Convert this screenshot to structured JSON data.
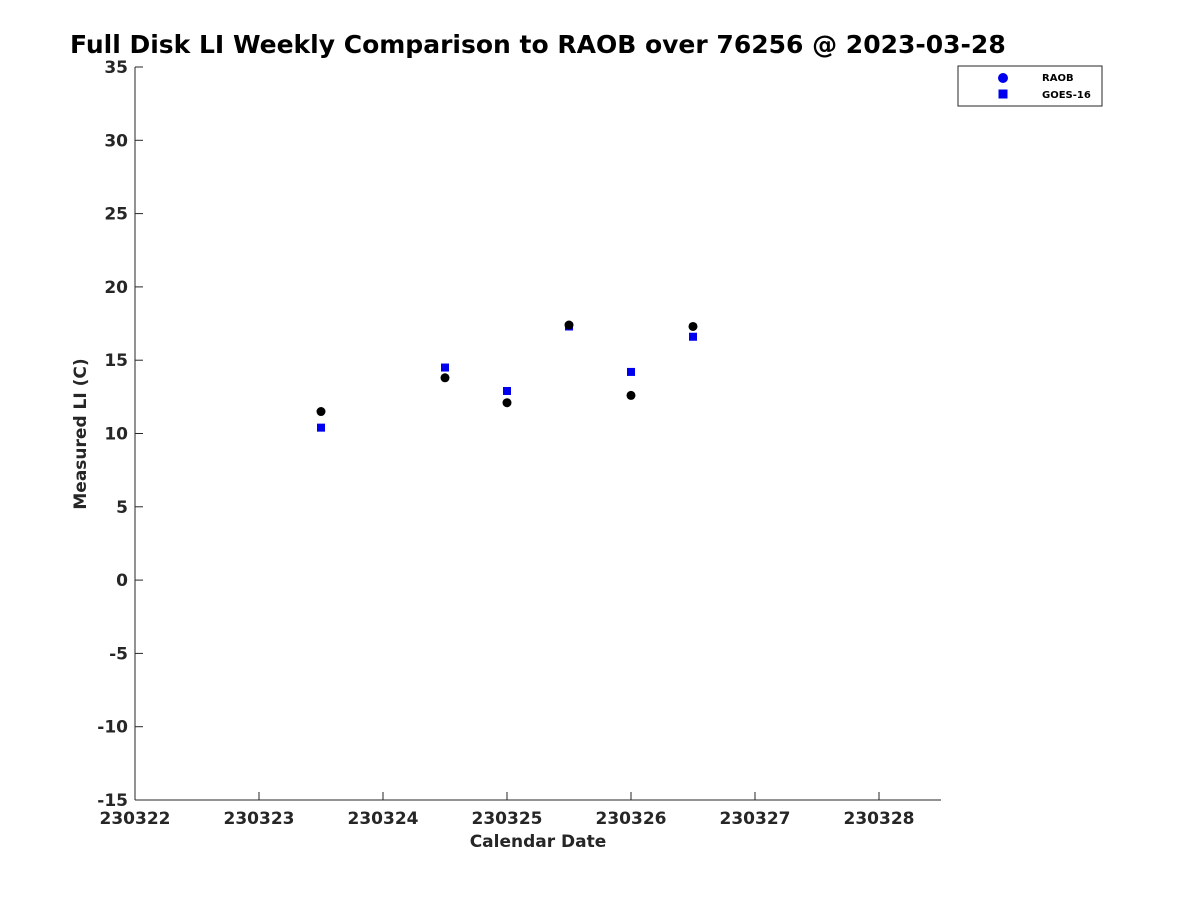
{
  "chart_data": {
    "type": "scatter",
    "title": "Full Disk LI Weekly Comparison to RAOB over 76256 @ 2023-03-28",
    "xlabel": "Calendar Date",
    "ylabel": "Measured LI (C)",
    "xlim": [
      "230322",
      "230328.5"
    ],
    "ylim": [
      -15,
      35
    ],
    "x_tick_labels": [
      "230322",
      "230323",
      "230324",
      "230325",
      "230326",
      "230327",
      "230328"
    ],
    "y_ticks": [
      -15,
      -10,
      -5,
      0,
      5,
      10,
      15,
      20,
      25,
      30,
      35
    ],
    "grid": false,
    "legend_position": "top-right",
    "series": [
      {
        "name": "RAOB",
        "marker": "circle",
        "color": "#000000",
        "legend_color": "#0000ee",
        "points": [
          {
            "x": "230323 12Z",
            "y": 11.5
          },
          {
            "x": "230324 12Z",
            "y": 13.8
          },
          {
            "x": "230325 00Z",
            "y": 12.1
          },
          {
            "x": "230325 12Z",
            "y": 17.4
          },
          {
            "x": "230326 00Z",
            "y": 12.6
          },
          {
            "x": "230326 12Z",
            "y": 17.3
          }
        ]
      },
      {
        "name": "GOES-16",
        "marker": "square",
        "color": "#0000ee",
        "legend_color": "#0000ee",
        "points": [
          {
            "x": "230323 12Z",
            "y": 10.4
          },
          {
            "x": "230324 12Z",
            "y": 14.5
          },
          {
            "x": "230325 00Z",
            "y": 12.9
          },
          {
            "x": "230325 12Z",
            "y": 17.3
          },
          {
            "x": "230326 00Z",
            "y": 14.2
          },
          {
            "x": "230326 12Z",
            "y": 16.6
          }
        ]
      }
    ]
  }
}
